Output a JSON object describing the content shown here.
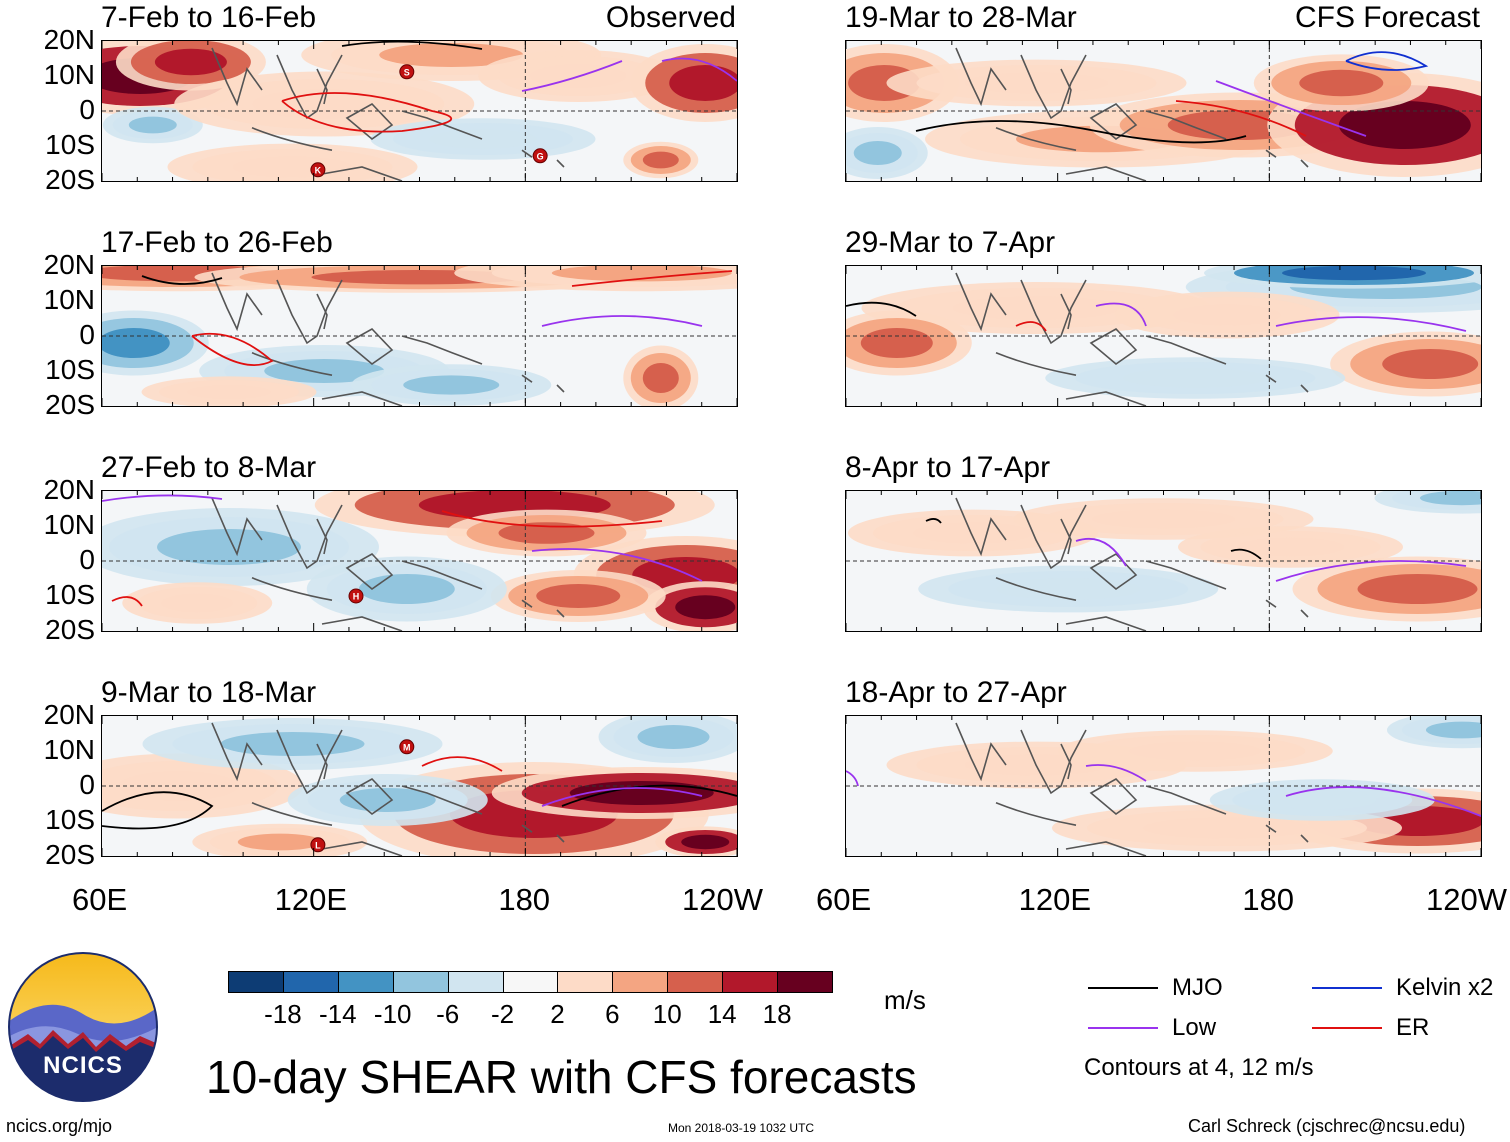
{
  "chart_data": {
    "type": "heatmap",
    "title": "10-day SHEAR with CFS forecasts",
    "units": "m/s",
    "lat_ticks": [
      "20N",
      "10N",
      "0",
      "10S",
      "20S"
    ],
    "lon_ticks": [
      "60E",
      "120E",
      "180",
      "120W"
    ],
    "lat_range": [
      -20,
      20
    ],
    "lon_range": [
      60,
      240
    ],
    "observed_label": "Observed",
    "forecast_label": "CFS Forecast",
    "panels": [
      {
        "title": "7-Feb to 16-Feb",
        "type": "observed",
        "storms": [
          "S",
          "K",
          "G"
        ]
      },
      {
        "title": "17-Feb to 26-Feb",
        "type": "observed",
        "storms": []
      },
      {
        "title": "27-Feb to 8-Mar",
        "type": "observed",
        "storms": [
          "H"
        ]
      },
      {
        "title": "9-Mar to 18-Mar",
        "type": "observed",
        "storms": [
          "M",
          "L"
        ]
      },
      {
        "title": "19-Mar to 28-Mar",
        "type": "forecast",
        "storms": []
      },
      {
        "title": "29-Mar to 7-Apr",
        "type": "forecast",
        "storms": []
      },
      {
        "title": "8-Apr to 17-Apr",
        "type": "forecast",
        "storms": []
      },
      {
        "title": "18-Apr to 27-Apr",
        "type": "forecast",
        "storms": []
      }
    ],
    "colorbar": {
      "labels": [
        "-18",
        "-14",
        "-10",
        "-6",
        "-2",
        "2",
        "6",
        "10",
        "14",
        "18"
      ],
      "colors": [
        "#0d3c74",
        "#2166ac",
        "#4393c3",
        "#92c5de",
        "#d1e5f0",
        "#f7f7f7",
        "#fddbc7",
        "#f4a582",
        "#d6604d",
        "#b2182b",
        "#67001f"
      ]
    },
    "legend": [
      {
        "label": "MJO",
        "color": "#000000"
      },
      {
        "label": "Kelvin x2",
        "color": "#1030d0"
      },
      {
        "label": "Low",
        "color": "#9933ee"
      },
      {
        "label": "ER",
        "color": "#e01010"
      }
    ],
    "contour_note": "Contours at 4, 12 m/s"
  },
  "footer": {
    "url": "ncics.org/mjo",
    "timestamp": "Mon 2018-03-19 1032 UTC",
    "credit": "Carl Schreck (cjschrec@ncsu.edu)",
    "logo_text": "NCICS"
  }
}
